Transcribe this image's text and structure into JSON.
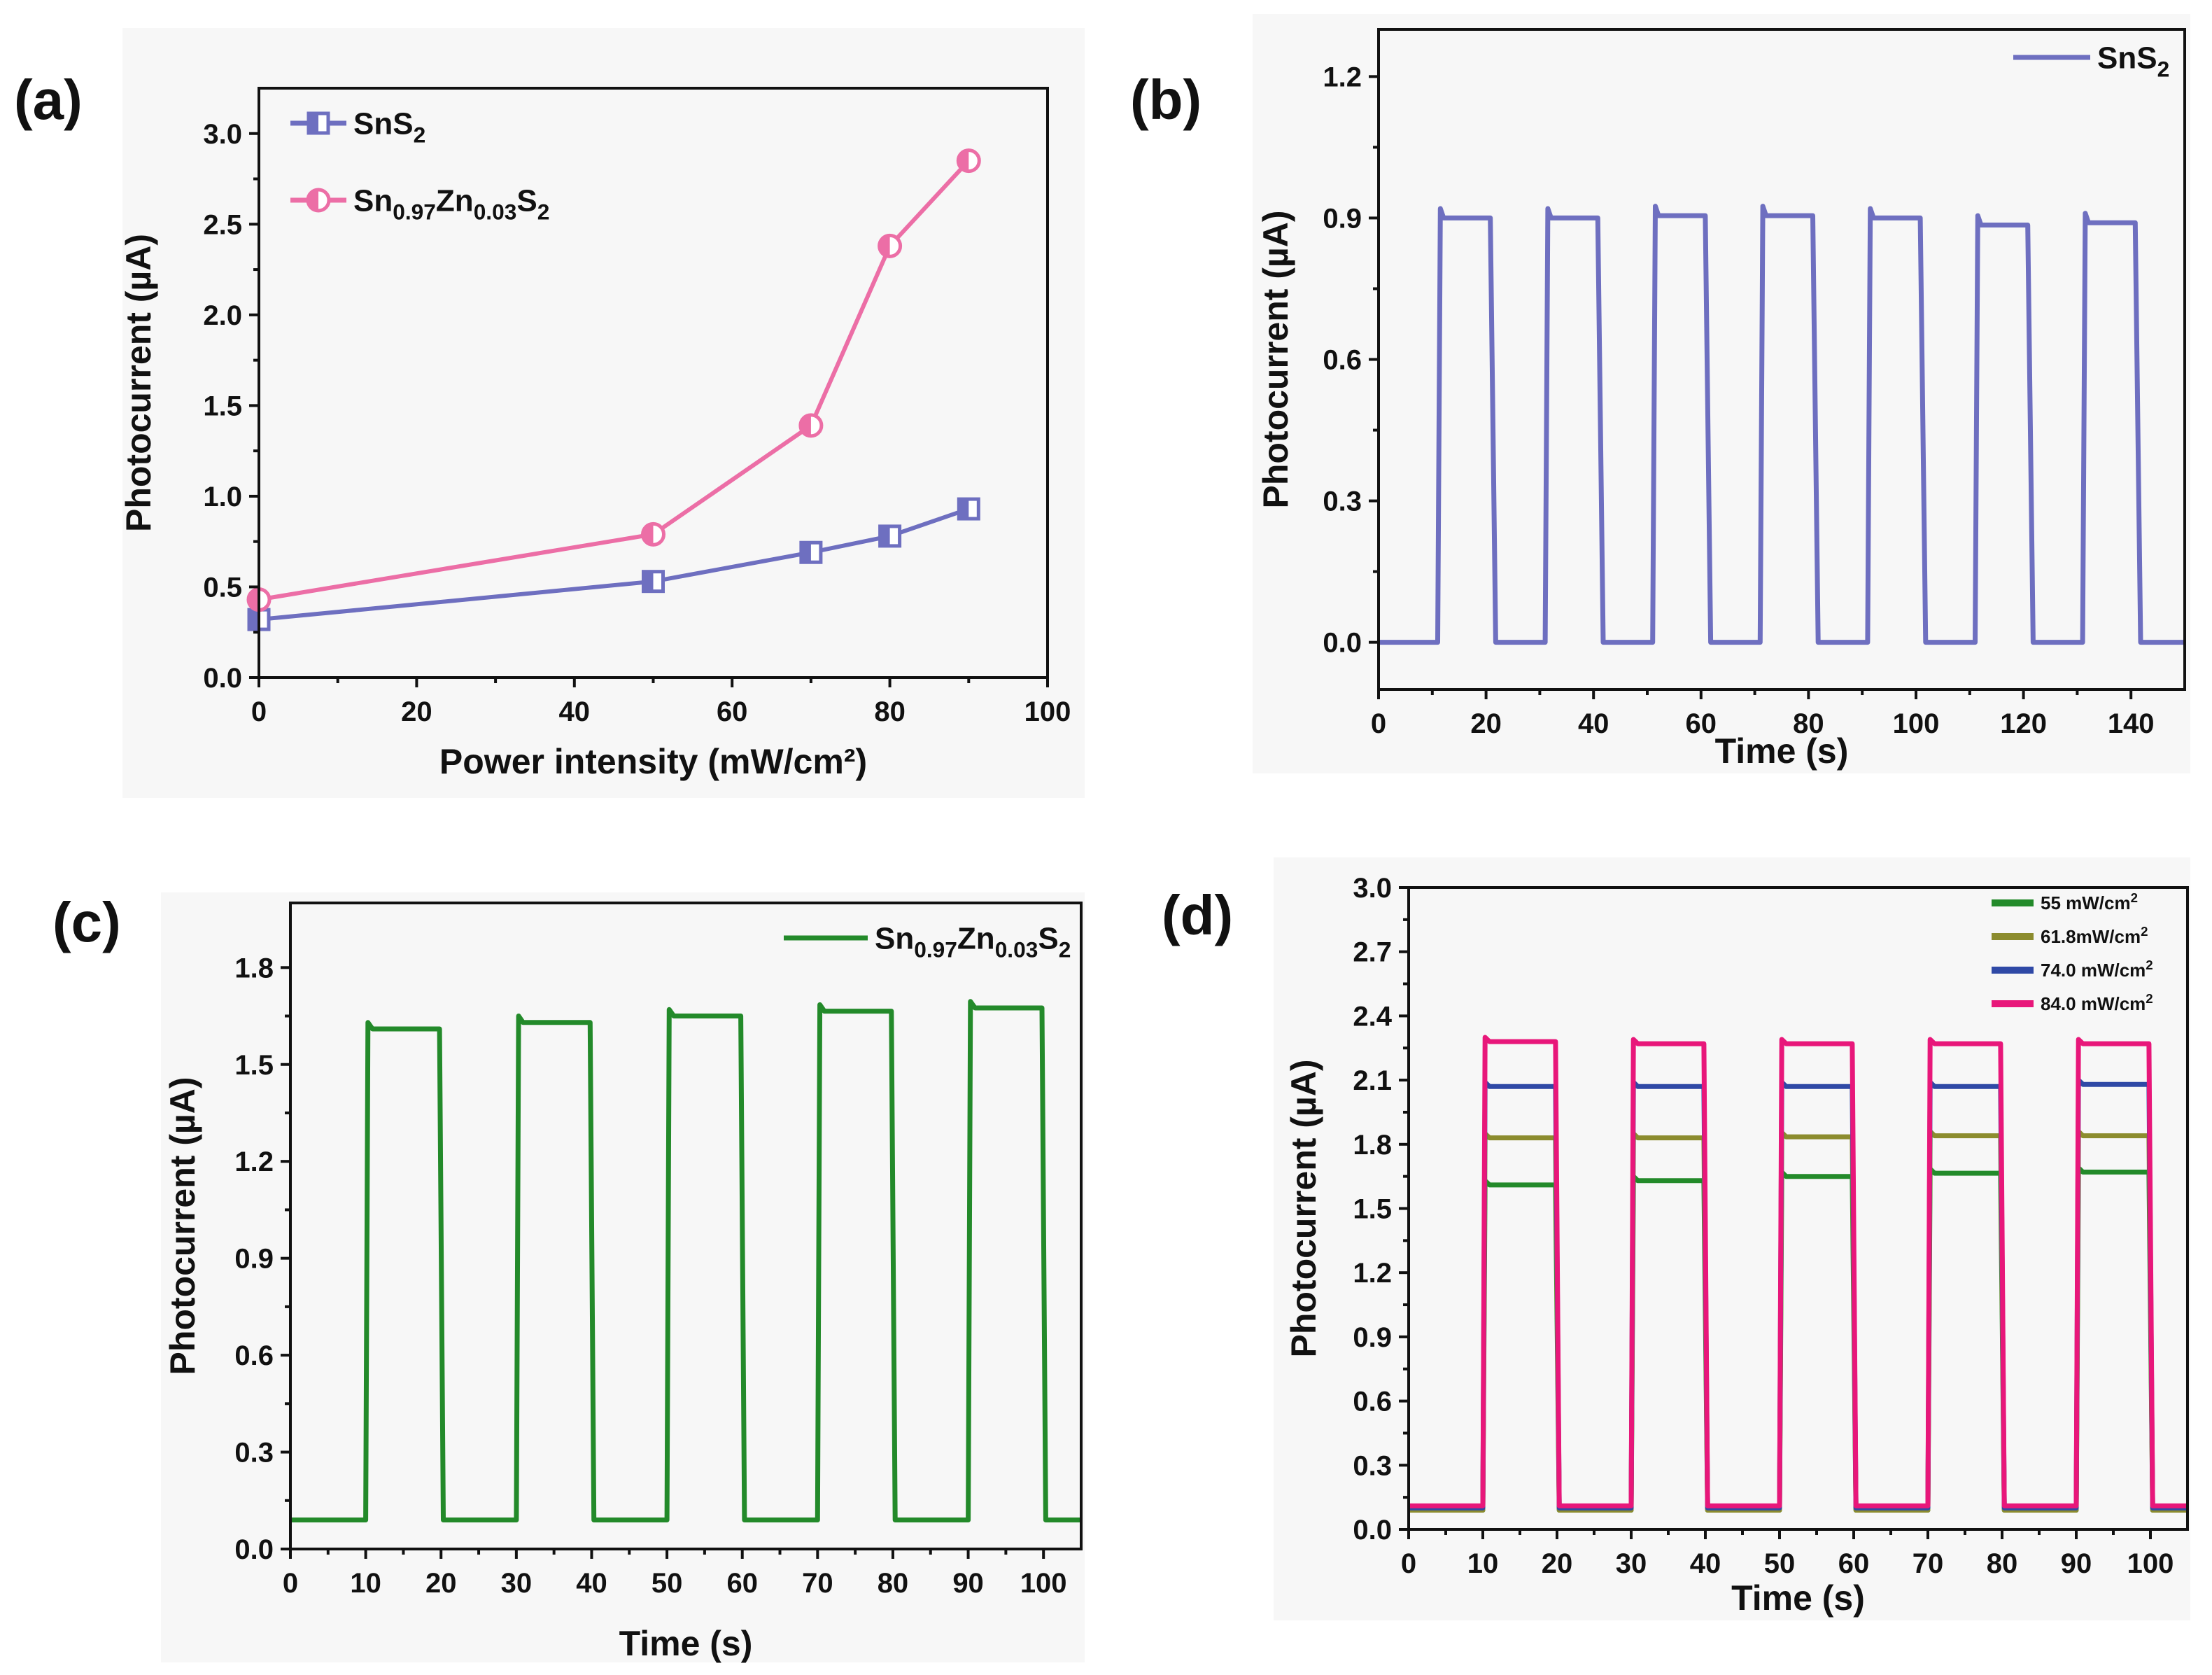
{
  "figure": {
    "colors": {
      "sns2": "#6e6fc0",
      "snzns": "#ec6ea6",
      "green": "#238a2a",
      "olive": "#8c8c2e",
      "blue": "#2f49a6",
      "magenta": "#e8177a"
    }
  },
  "chart_data": [
    {
      "id": "a",
      "type": "line",
      "panel_label": "(a)",
      "xlabel": "Power intensity (mW/cm²)",
      "ylabel": "Photocurrent (µA)",
      "xlim": [
        0,
        100
      ],
      "ylim": [
        0,
        3.25
      ],
      "xticks": [
        "0",
        "20",
        "40",
        "60",
        "80",
        "100"
      ],
      "yticks": [
        "0.0",
        "0.5",
        "1.0",
        "1.5",
        "2.0",
        "2.5",
        "3.0"
      ],
      "legend_position": "top-left",
      "series": [
        {
          "name": "SnS₂",
          "color": "#6e6fc0",
          "marker": "square",
          "x": [
            0,
            50,
            70,
            80,
            90
          ],
          "y": [
            0.32,
            0.53,
            0.69,
            0.78,
            0.93
          ]
        },
        {
          "name": "Sn₀.₉₇Zn₀.₀₃S₂",
          "color": "#ec6ea6",
          "marker": "circle",
          "x": [
            0,
            50,
            70,
            80,
            90
          ],
          "y": [
            0.43,
            0.79,
            1.39,
            2.38,
            2.85
          ]
        }
      ]
    },
    {
      "id": "b",
      "type": "line",
      "panel_label": "(b)",
      "xlabel": "Time (s)",
      "ylabel": "Photocurrent (µA)",
      "xlim": [
        0,
        150
      ],
      "ylim": [
        -0.1,
        1.3
      ],
      "xticks": [
        "0",
        "20",
        "40",
        "60",
        "80",
        "100",
        "120",
        "140"
      ],
      "yticks": [
        "0.0",
        "0.3",
        "0.6",
        "0.9",
        "1.2"
      ],
      "legend_position": "top-right",
      "series": [
        {
          "name": "SnS₂",
          "color": "#6e6fc0",
          "on_off": {
            "off_level": 0.0,
            "rise": 0.5,
            "fall": 0.8,
            "cycles": [
              [
                11,
                21,
                0.9
              ],
              [
                31,
                41,
                0.9
              ],
              [
                51,
                61,
                0.905
              ],
              [
                71,
                81,
                0.905
              ],
              [
                91,
                101,
                0.9
              ],
              [
                111,
                121,
                0.885
              ],
              [
                131,
                141,
                0.89
              ]
            ]
          }
        }
      ]
    },
    {
      "id": "c",
      "type": "line",
      "panel_label": "(c)",
      "xlabel": "Time (s)",
      "ylabel": "Photocurrent (µA)",
      "xlim": [
        0,
        105
      ],
      "ylim": [
        0,
        2.0
      ],
      "xticks": [
        "0",
        "10",
        "20",
        "30",
        "40",
        "50",
        "60",
        "70",
        "80",
        "90",
        "100"
      ],
      "yticks": [
        "0.0",
        "0.3",
        "0.6",
        "0.9",
        "1.2",
        "1.5",
        "1.8"
      ],
      "legend_position": "top-right",
      "series": [
        {
          "name": "Sn0.97Zn0.03S2",
          "color": "#238a2a",
          "on_off": {
            "off_level": 0.09,
            "rise": 0.3,
            "fall": 0.3,
            "cycles": [
              [
                10,
                20,
                1.61
              ],
              [
                30,
                40,
                1.63
              ],
              [
                50,
                60,
                1.65
              ],
              [
                70,
                80,
                1.665
              ],
              [
                90,
                100,
                1.675
              ]
            ]
          }
        }
      ]
    },
    {
      "id": "d",
      "type": "line",
      "panel_label": "(d)",
      "xlabel": "Time (s)",
      "ylabel": "Photocurrent (µA)",
      "xlim": [
        0,
        105
      ],
      "ylim": [
        0,
        3.0
      ],
      "xticks": [
        "0",
        "10",
        "20",
        "30",
        "40",
        "50",
        "60",
        "70",
        "80",
        "90",
        "100"
      ],
      "yticks": [
        "0.0",
        "0.3",
        "0.6",
        "0.9",
        "1.2",
        "1.5",
        "1.8",
        "2.1",
        "2.4",
        "2.7",
        "3.0"
      ],
      "legend_position": "top-right",
      "series": [
        {
          "name": "55 mW/cm²",
          "color": "#238a2a",
          "on_off": {
            "off_level": 0.09,
            "rise": 0.3,
            "fall": 0.3,
            "cycles": [
              [
                10,
                20,
                1.61
              ],
              [
                30,
                40,
                1.63
              ],
              [
                50,
                60,
                1.65
              ],
              [
                70,
                80,
                1.665
              ],
              [
                90,
                100,
                1.67
              ]
            ]
          }
        },
        {
          "name": "61.8mW/cm²",
          "color": "#8c8c2e",
          "on_off": {
            "off_level": 0.09,
            "rise": 0.3,
            "fall": 0.3,
            "cycles": [
              [
                10,
                20,
                1.83
              ],
              [
                30,
                40,
                1.83
              ],
              [
                50,
                60,
                1.835
              ],
              [
                70,
                80,
                1.84
              ],
              [
                90,
                100,
                1.84
              ]
            ]
          }
        },
        {
          "name": "74.0 mW/cm²",
          "color": "#2f49a6",
          "on_off": {
            "off_level": 0.1,
            "rise": 0.3,
            "fall": 0.3,
            "cycles": [
              [
                10,
                20,
                2.07
              ],
              [
                30,
                40,
                2.07
              ],
              [
                50,
                60,
                2.07
              ],
              [
                70,
                80,
                2.07
              ],
              [
                90,
                100,
                2.08
              ]
            ]
          }
        },
        {
          "name": "84.0 mW/cm²",
          "color": "#e8177a",
          "on_off": {
            "off_level": 0.11,
            "rise": 0.3,
            "fall": 0.3,
            "cycles": [
              [
                10,
                20,
                2.28
              ],
              [
                30,
                40,
                2.27
              ],
              [
                50,
                60,
                2.27
              ],
              [
                70,
                80,
                2.27
              ],
              [
                90,
                100,
                2.27
              ]
            ]
          }
        }
      ]
    }
  ]
}
